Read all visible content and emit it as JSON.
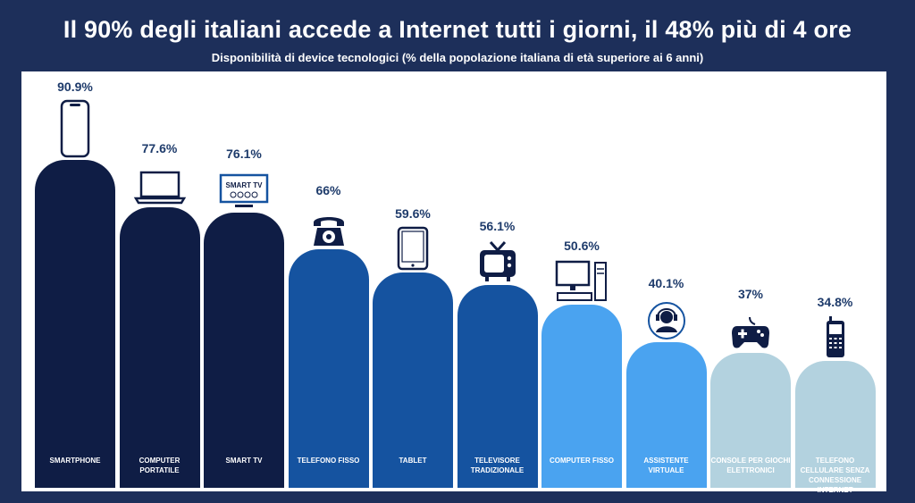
{
  "header": {
    "title": "Il 90% degli italiani accede a Internet tutti i giorni, il 48% più di 4 ore",
    "subtitle": "Disponibilità di device tecnologici (% della popolazione italiana di età superiore ai 6 anni)"
  },
  "chart_data": {
    "type": "bar",
    "title": "Il 90% degli italiani accede a Internet tutti i giorni, il 48% più di 4 ore",
    "subtitle": "Disponibilità di device tecnologici (% della popolazione italiana di età superiore ai 6 anni)",
    "categories": [
      "SMARTPHONE",
      "COMPUTER PORTATILE",
      "SMART TV",
      "TELEFONO FISSO",
      "TABLET",
      "TELEVISORE TRADIZIONALE",
      "COMPUTER FISSO",
      "ASSISTENTE VIRTUALE",
      "CONSOLE PER GIOCHI ELETTRONICI",
      "TELEFONO CELLULARE SENZA CONNESSIONE INTERNET"
    ],
    "values": [
      90.9,
      77.6,
      76.1,
      66,
      59.6,
      56.1,
      50.6,
      40.1,
      37,
      34.8
    ],
    "value_labels": [
      "90.9%",
      "77.6%",
      "76.1%",
      "66%",
      "59.6%",
      "56.1%",
      "50.6%",
      "40.1%",
      "37%",
      "34.8%"
    ],
    "colors": [
      "#0f1d45",
      "#0f1d45",
      "#0f1d45",
      "#1553a0",
      "#1553a0",
      "#1553a0",
      "#4aa3f0",
      "#4aa3f0",
      "#b3d2df",
      "#b3d2df"
    ],
    "icons": [
      "smartphone-icon",
      "laptop-icon",
      "smart-tv-icon",
      "telephone-icon",
      "tablet-icon",
      "tv-icon",
      "desktop-computer-icon",
      "assistant-icon",
      "gamepad-icon",
      "cellphone-icon"
    ],
    "smart_tv_icon_text": "SMART TV",
    "ylim": [
      0,
      100
    ],
    "grid": false,
    "legend": "none"
  }
}
